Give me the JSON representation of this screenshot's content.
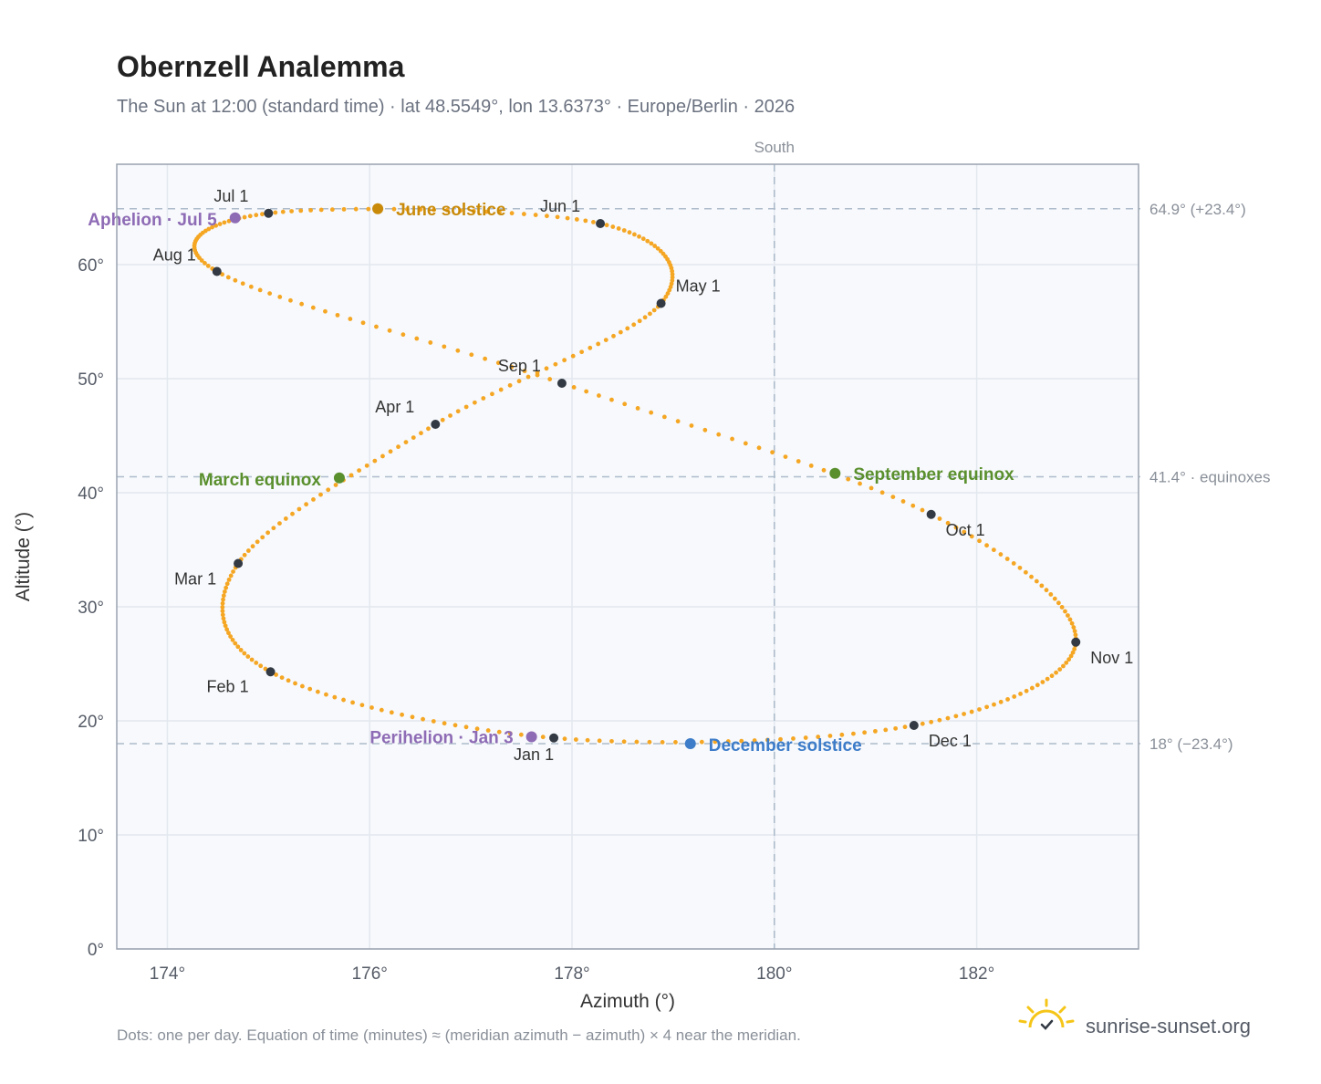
{
  "chart_data": {
    "type": "scatter",
    "title": "Obernzell Analemma",
    "subtitle": "The Sun at 12:00 (standard time) · lat 48.5549°, lon 13.6373° · Europe/Berlin · 2026",
    "xlabel": "Azimuth (°)",
    "ylabel": "Altitude (°)",
    "xlim": [
      173.5,
      183.6
    ],
    "ylim": [
      0,
      68.8
    ],
    "x_ticks": [
      174,
      176,
      178,
      180,
      182
    ],
    "x_tick_labels": [
      "174°",
      "176°",
      "178°",
      "180°",
      "182°"
    ],
    "y_ticks": [
      0,
      10,
      20,
      30,
      40,
      50,
      60
    ],
    "y_tick_labels": [
      "0°",
      "10°",
      "20°",
      "30°",
      "40°",
      "50°",
      "60°"
    ],
    "grid": true,
    "meridian": {
      "azimuth": 180,
      "label": "South"
    },
    "reference_lines": [
      {
        "altitude": 64.9,
        "label": "64.9° (+23.4°)"
      },
      {
        "altitude": 41.4,
        "label": "41.4° · equinoxes"
      },
      {
        "altitude": 18.0,
        "label": "18° (−23.4°)"
      }
    ],
    "month_starts": [
      {
        "label": "Jan 1",
        "az": 177.82,
        "alt": 18.5
      },
      {
        "label": "Feb 1",
        "az": 175.02,
        "alt": 24.3
      },
      {
        "label": "Mar 1",
        "az": 174.7,
        "alt": 33.8
      },
      {
        "label": "Apr 1",
        "az": 176.65,
        "alt": 46.0
      },
      {
        "label": "May 1",
        "az": 178.88,
        "alt": 56.6
      },
      {
        "label": "Jun 1",
        "az": 178.28,
        "alt": 63.6
      },
      {
        "label": "Jul 1",
        "az": 175.0,
        "alt": 64.5
      },
      {
        "label": "Aug 1",
        "az": 174.49,
        "alt": 59.4
      },
      {
        "label": "Sep 1",
        "az": 177.9,
        "alt": 49.6
      },
      {
        "label": "Oct 1",
        "az": 181.55,
        "alt": 38.1
      },
      {
        "label": "Nov 1",
        "az": 182.98,
        "alt": 26.9
      },
      {
        "label": "Dec 1",
        "az": 181.38,
        "alt": 19.6
      }
    ],
    "events": [
      {
        "label": "June solstice",
        "az": 176.08,
        "alt": 64.9,
        "color": "#c98a0a"
      },
      {
        "label": "Aphelion · Jul 5",
        "az": 174.67,
        "alt": 64.1,
        "color": "#8e6bb5"
      },
      {
        "label": "March equinox",
        "az": 175.7,
        "alt": 41.3,
        "color": "#5a8f2e"
      },
      {
        "label": "September equinox",
        "az": 180.6,
        "alt": 41.7,
        "color": "#5a8f2e"
      },
      {
        "label": "Perihelion · Jan 3",
        "az": 177.6,
        "alt": 18.6,
        "color": "#8e6bb5"
      },
      {
        "label": "December solstice",
        "az": 179.17,
        "alt": 18.0,
        "color": "#3d7cc9"
      }
    ],
    "curve_color": "#f5a623",
    "month_dot_color": "#333a44"
  },
  "footnote": "Dots: one per day. Equation of time (minutes) ≈ (meridian azimuth − azimuth) × 4 near the meridian.",
  "brand": {
    "name": "sunrise-sunset.org",
    "icon": "sun-check-icon",
    "color": "#f5c518"
  }
}
